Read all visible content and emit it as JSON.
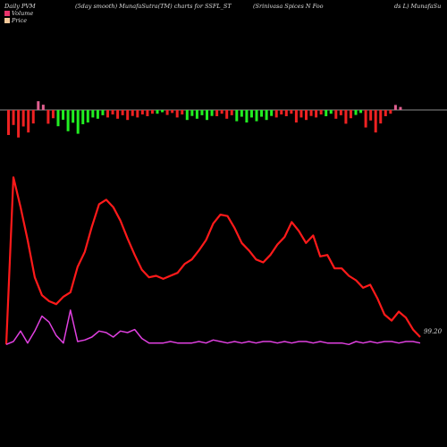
{
  "header": {
    "left": "Daily PVM",
    "middle": "(5day smooth) MunafaSutra(TM) charts for SSFL_ST",
    "right_a": "(Srinivasa Spices N Foo",
    "right_b": "ds L) MunafaSu"
  },
  "legend": {
    "volume_label": "Volume",
    "price_label": "Price",
    "volume_color": "#e8336b",
    "price_color": "#f5c99a"
  },
  "end_label": "99.20",
  "colors": {
    "background": "#000000",
    "price_line": "#ff1a1a",
    "pvm_line": "#e040e0",
    "bar_up": "#22ee22",
    "bar_down": "#ee2222",
    "bar_neutral": "#e06090",
    "baseline": "#bbbbbb"
  },
  "chart_data": {
    "type": "line",
    "grid": false,
    "series": [
      {
        "key": "price",
        "values": [
          104,
          216,
          196,
          174,
          149,
          137,
          133,
          131,
          136,
          139,
          156,
          166,
          183,
          198,
          201,
          196,
          187,
          175,
          164,
          154,
          149,
          150,
          148,
          150,
          152,
          158,
          161,
          167,
          174,
          185,
          191,
          190,
          182,
          172,
          167,
          161,
          159,
          164,
          171,
          176,
          186,
          180,
          172,
          177,
          163,
          164,
          155,
          155,
          150,
          147,
          142,
          144,
          135,
          124,
          120,
          126,
          122,
          114,
          109
        ]
      },
      {
        "key": "pvm",
        "values": [
          104,
          106,
          113,
          105,
          113,
          123,
          119,
          110,
          105,
          127,
          106,
          107,
          109,
          113,
          112,
          109,
          113,
          112,
          114,
          108,
          105,
          105,
          105,
          106,
          105,
          105,
          105,
          106,
          105,
          107,
          106,
          105,
          106,
          105,
          106,
          105,
          106,
          106,
          105,
          106,
          105,
          106,
          106,
          105,
          106,
          105,
          105,
          105,
          104,
          106,
          105,
          106,
          105,
          106,
          106,
          105,
          106,
          106,
          105
        ]
      }
    ],
    "volume_bars": [
      {
        "dir": "down",
        "v": 1.0
      },
      {
        "dir": "down",
        "v": 1.1
      },
      {
        "dir": "down",
        "v": 0.9
      },
      {
        "dir": "neutral",
        "v": 0.35
      },
      {
        "dir": "down",
        "v": 0.55
      },
      {
        "dir": "up",
        "v": 0.65
      },
      {
        "dir": "up",
        "v": 0.85
      },
      {
        "dir": "up",
        "v": 0.95
      },
      {
        "dir": "up",
        "v": 0.5
      },
      {
        "dir": "up",
        "v": 0.35
      },
      {
        "dir": "down",
        "v": 0.3
      },
      {
        "dir": "down",
        "v": 0.35
      },
      {
        "dir": "down",
        "v": 0.4
      },
      {
        "dir": "down",
        "v": 0.3
      },
      {
        "dir": "down",
        "v": 0.25
      },
      {
        "dir": "up",
        "v": 0.15
      },
      {
        "dir": "down",
        "v": 0.2
      },
      {
        "dir": "down",
        "v": 0.3
      },
      {
        "dir": "up",
        "v": 0.4
      },
      {
        "dir": "up",
        "v": 0.35
      },
      {
        "dir": "up",
        "v": 0.4
      },
      {
        "dir": "down",
        "v": 0.25
      },
      {
        "dir": "down",
        "v": 0.35
      },
      {
        "dir": "up",
        "v": 0.45
      },
      {
        "dir": "up",
        "v": 0.5
      },
      {
        "dir": "up",
        "v": 0.45
      },
      {
        "dir": "up",
        "v": 0.4
      },
      {
        "dir": "down",
        "v": 0.3
      },
      {
        "dir": "down",
        "v": 0.25
      },
      {
        "dir": "down",
        "v": 0.5
      },
      {
        "dir": "down",
        "v": 0.4
      },
      {
        "dir": "down",
        "v": 0.3
      },
      {
        "dir": "up",
        "v": 0.25
      },
      {
        "dir": "down",
        "v": 0.35
      },
      {
        "dir": "down",
        "v": 0.55
      },
      {
        "dir": "up",
        "v": 0.2
      },
      {
        "dir": "down",
        "v": 0.7
      },
      {
        "dir": "down",
        "v": 0.9
      },
      {
        "dir": "down",
        "v": 0.25
      },
      {
        "dir": "neutral",
        "v": 0.2
      }
    ]
  }
}
